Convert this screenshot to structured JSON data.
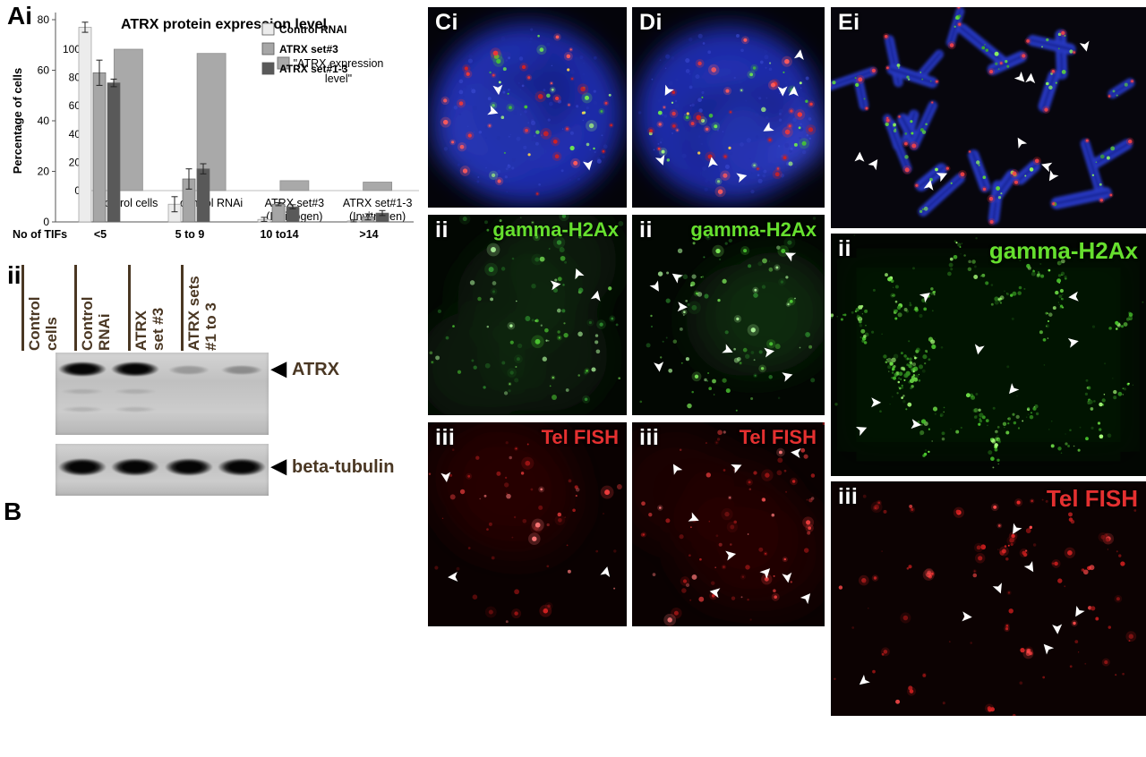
{
  "figure": {
    "panel_ai": {
      "label": "Ai"
    },
    "panel_blot": {
      "label": "ii",
      "lanes": [
        [
          "Control",
          "cells"
        ],
        [
          "Control",
          "RNAi"
        ],
        [
          "ATRX",
          "set #3"
        ],
        [
          "ATRX sets",
          "#1 to 3"
        ]
      ],
      "targets": [
        {
          "name": "ATRX",
          "band_intensities": [
            1.0,
            0.97,
            0.18,
            0.25
          ]
        },
        {
          "name": "beta-tubulin",
          "band_intensities": [
            1.0,
            1.0,
            1.0,
            1.0
          ]
        }
      ]
    },
    "panel_b": {
      "label": "B"
    },
    "microscopy": {
      "c": {
        "merge": "Ci",
        "green_label": "ii",
        "green_title": "gamma-H2Ax",
        "red_label": "iii",
        "red_title": "Tel FISH"
      },
      "d": {
        "merge": "Di",
        "green_label": "ii",
        "green_title": "gamma-H2Ax",
        "red_label": "iii",
        "red_title": "Tel FISH"
      },
      "e": {
        "merge": "Ei",
        "green_label": "ii",
        "green_title": "gamma-H2Ax",
        "red_label": "iii",
        "red_title": "Tel FISH"
      }
    },
    "colors": {
      "bar_gray": "#a9a9a9",
      "green_label": "#66e02e",
      "red_label": "#e43030",
      "blot_text": "#4a3723"
    }
  },
  "chart_data": [
    {
      "type": "bar",
      "title": "ATRX protein expression level",
      "categories": [
        "control cells",
        "control RNAi",
        "ATRX set#3\n(Invitrogen)",
        "ATRX set#1-3\n(Invitrogen)"
      ],
      "values": [
        100,
        97,
        7,
        6
      ],
      "legend": [
        "\"ATRX expression level\""
      ],
      "xlabel": "",
      "ylabel": "",
      "ylim": [
        0,
        100
      ],
      "yticks": [
        0,
        20,
        40,
        60,
        80,
        100
      ],
      "bar_color": "#a9a9a9",
      "grid": false,
      "legend_position": "inside-right"
    },
    {
      "type": "bar",
      "title": "",
      "xlabel": "No of TIFs",
      "ylabel": "Percentage of cells",
      "categories": [
        "<5",
        "5 to 9",
        "10 to14",
        ">14"
      ],
      "series": [
        {
          "name": "Control RNAI",
          "color": "#ececec",
          "values": [
            77,
            7,
            1,
            0.4
          ],
          "errors": [
            2,
            3,
            0.8,
            0.4
          ]
        },
        {
          "name": "ATRX set#3",
          "color": "#a6a6a6",
          "values": [
            59,
            17,
            7,
            2
          ],
          "errors": [
            5,
            4,
            0.6,
            1.2
          ]
        },
        {
          "name": "ATRX set#1-3",
          "color": "#595959",
          "values": [
            55,
            21,
            6,
            3.5
          ],
          "errors": [
            1.5,
            2,
            0.8,
            1
          ]
        }
      ],
      "ylim": [
        0,
        80
      ],
      "yticks": [
        0,
        20,
        40,
        60,
        80
      ],
      "grid": false,
      "legend_position": "inside-right"
    }
  ]
}
